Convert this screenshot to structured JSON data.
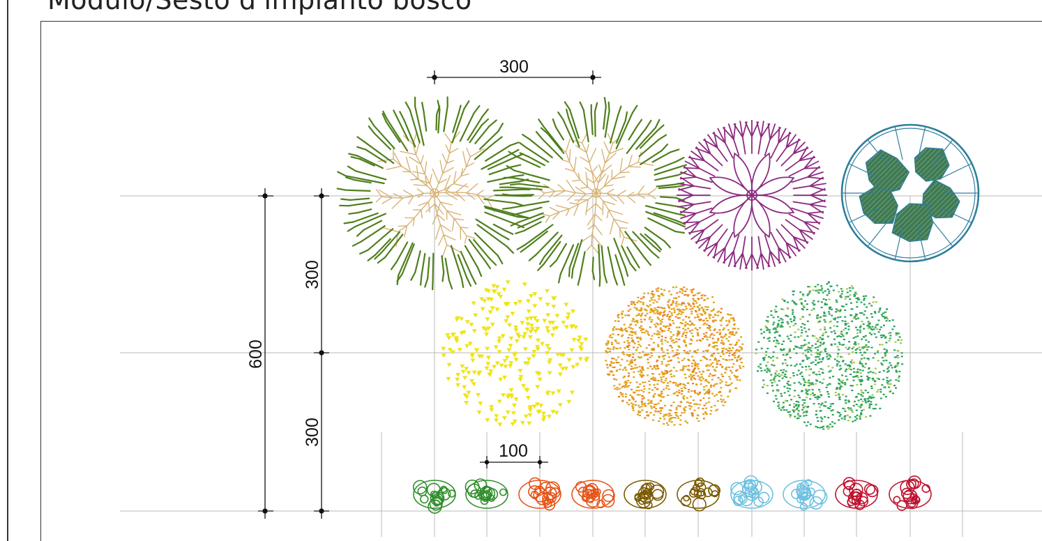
{
  "title": "Modulo/Sesto d'impianto bosco",
  "dimensions": {
    "top_width": "300",
    "left_total": "600",
    "left_upper": "300",
    "left_lower": "300",
    "shrub_spacing": "100"
  },
  "colors": {
    "tree_olive_outer": "#4f7f1c",
    "tree_olive_inner": "#d8b274",
    "tree_magenta": "#8c2a80",
    "tree_teal": "#2e7e9c",
    "tree_teal_fill": "#3f7a52",
    "tree_yellow": "#efe416",
    "tree_orange": "#e1a21c",
    "tree_orange_spot": "#ef7a25",
    "tree_green": "#2ea35d",
    "shrubs": [
      "#2f8f2a",
      "#2f8f2a",
      "#e65316",
      "#e65316",
      "#7a5a00",
      "#7a5a00",
      "#6cc0e0",
      "#6cc0e0",
      "#c0102e",
      "#c0102e"
    ]
  }
}
